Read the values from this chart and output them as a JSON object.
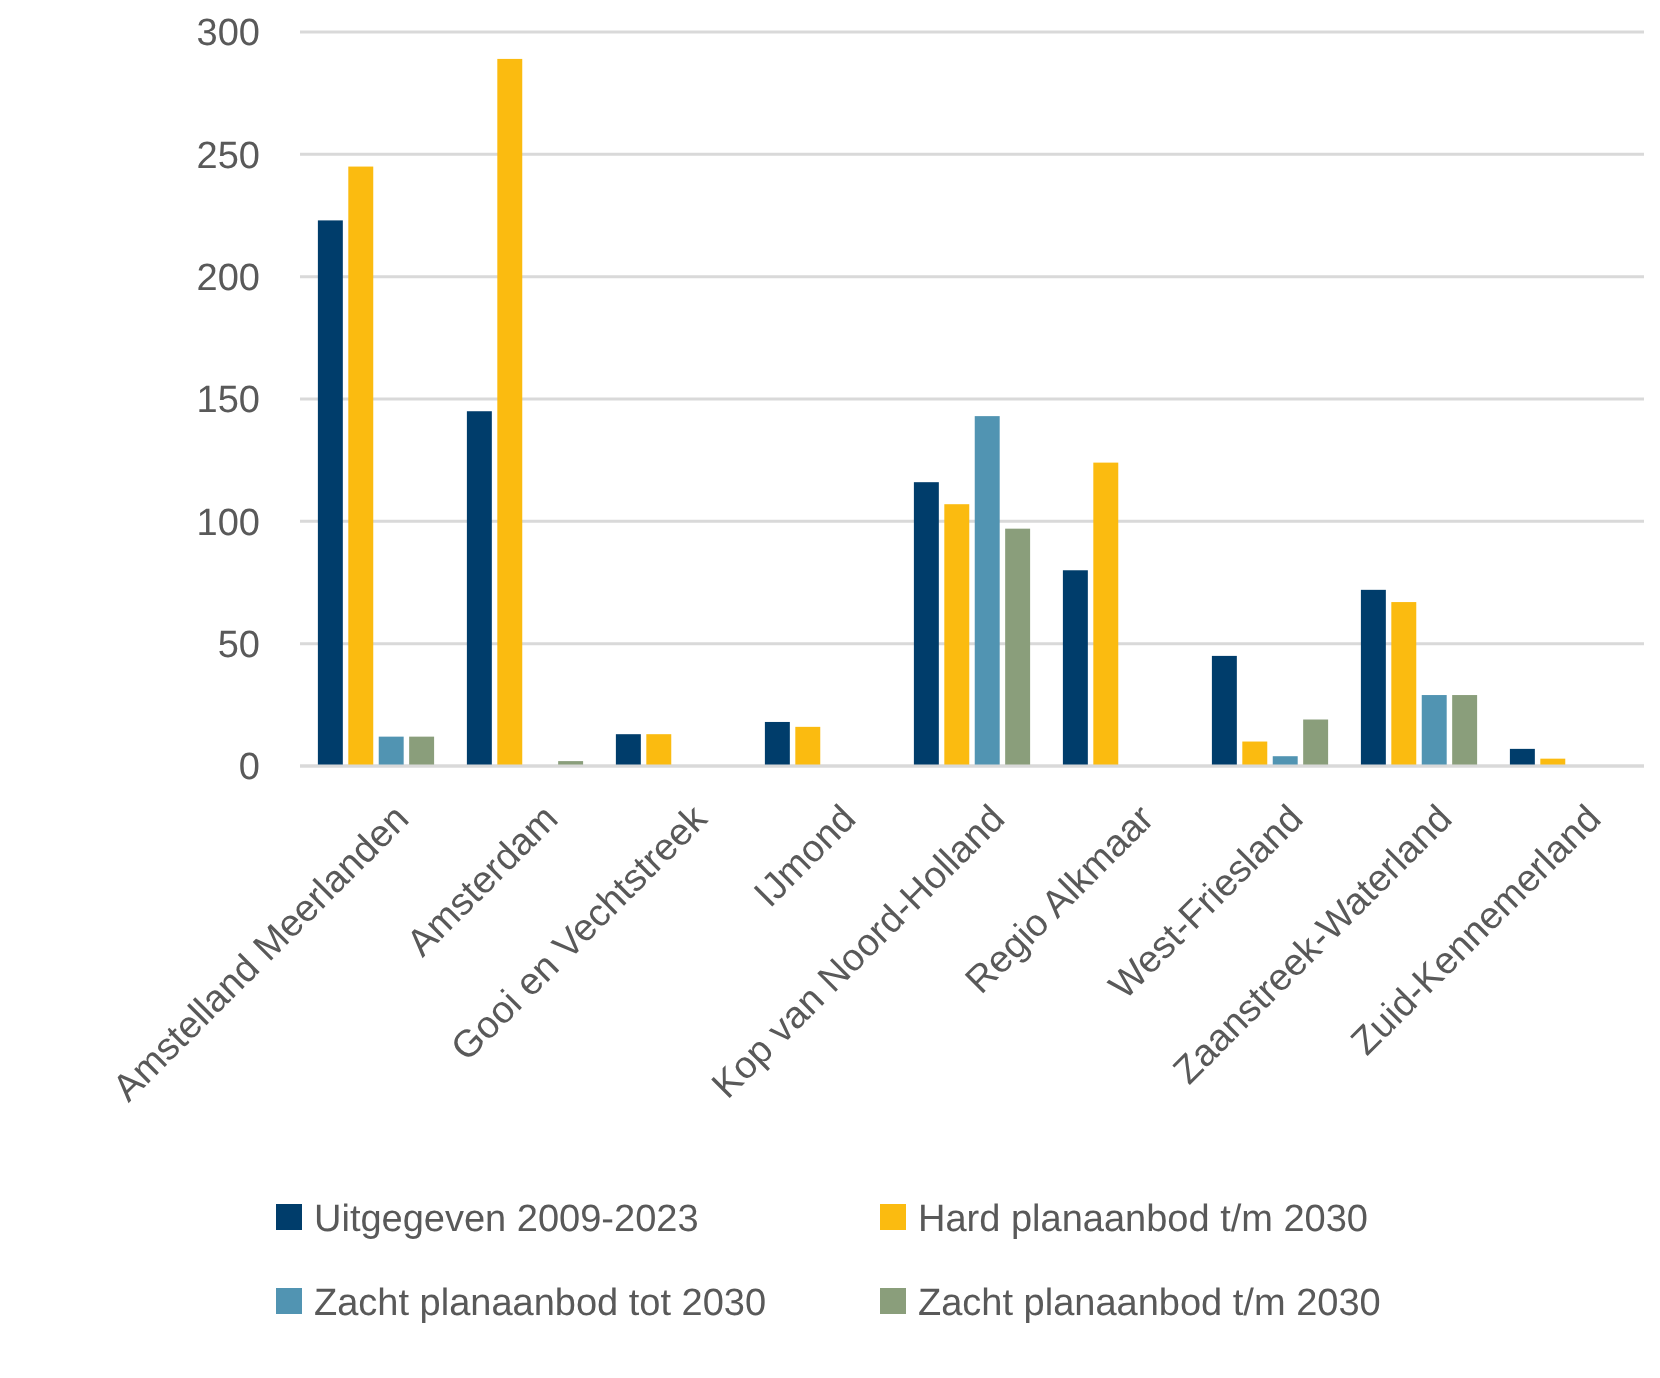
{
  "chart_data": {
    "type": "bar",
    "categories": [
      "Amstelland Meerlanden",
      "Amsterdam",
      "Gooi en Vechtstreek",
      "IJmond",
      "Kop van Noord-Holland",
      "Regio Alkmaar",
      "West-Friesland",
      "Zaanstreek-Waterland",
      "Zuid-Kennemerland"
    ],
    "series": [
      {
        "name": "Uitgegeven 2009-2023",
        "color": "#003d6b",
        "values": [
          223,
          145,
          13,
          18,
          116,
          80,
          45,
          72,
          7
        ]
      },
      {
        "name": "Hard planaanbod t/m 2030",
        "color": "#fbbb10",
        "values": [
          245,
          289,
          13,
          16,
          107,
          124,
          10,
          67,
          3
        ]
      },
      {
        "name": "Zacht planaanbod tot 2030",
        "color": "#5194b2",
        "values": [
          12,
          null,
          null,
          null,
          143,
          null,
          4,
          29,
          null
        ]
      },
      {
        "name": "Zacht planaanbod t/m 2030",
        "color": "#8a9e7b",
        "values": [
          12,
          2,
          null,
          null,
          97,
          null,
          19,
          29,
          null
        ]
      }
    ],
    "ylim": [
      0,
      300
    ],
    "yticks": [
      0,
      50,
      100,
      150,
      200,
      250,
      300
    ],
    "grid": "y",
    "legend": "bottom"
  }
}
